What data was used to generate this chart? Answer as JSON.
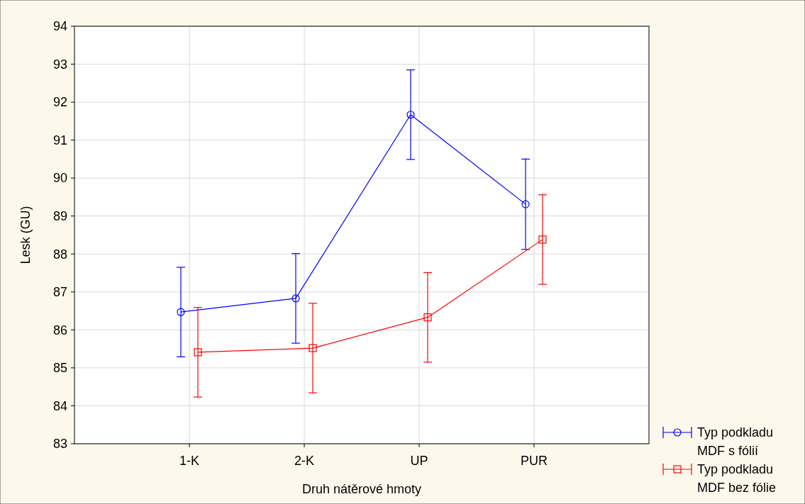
{
  "chart_data": {
    "type": "line",
    "xlabel": "Druh nátěrové hmoty",
    "ylabel": "Lesk (GU)",
    "categories": [
      "1-K",
      "2-K",
      "UP",
      "PUR"
    ],
    "ylim": [
      83,
      94
    ],
    "yticks": [
      83,
      84,
      85,
      86,
      87,
      88,
      89,
      90,
      91,
      92,
      93,
      94
    ],
    "grid": true,
    "legend": "bottom right",
    "line_style": "solid",
    "series": [
      {
        "name": "Typ podkladu MDF s fólií",
        "color": "#0000ff",
        "marker": "circle",
        "values": [
          86.47,
          86.83,
          91.67,
          89.31
        ],
        "errors": [
          1.18,
          1.18,
          1.18,
          1.19
        ]
      },
      {
        "name": "Typ podkladu MDF bez fólie",
        "color": "#ff0000",
        "marker": "square",
        "values": [
          85.41,
          85.52,
          86.33,
          88.38
        ],
        "errors": [
          1.18,
          1.18,
          1.18,
          1.18
        ]
      }
    ]
  }
}
